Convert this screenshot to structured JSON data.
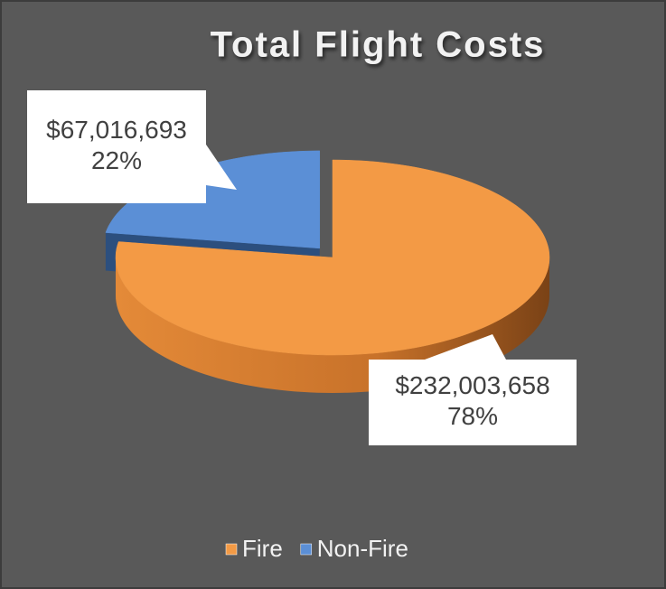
{
  "chart_data": {
    "type": "pie",
    "title": "Total Flight Costs",
    "categories": [
      "Fire",
      "Non-Fire"
    ],
    "values": [
      232003658,
      67016693
    ],
    "value_labels": [
      "$232,003,658",
      "$67,016,693"
    ],
    "percents": [
      78,
      22
    ],
    "percent_labels": [
      "78%",
      "22%"
    ],
    "colors": [
      "#f39a45",
      "#5b8fd6"
    ],
    "legend": "bottom"
  }
}
